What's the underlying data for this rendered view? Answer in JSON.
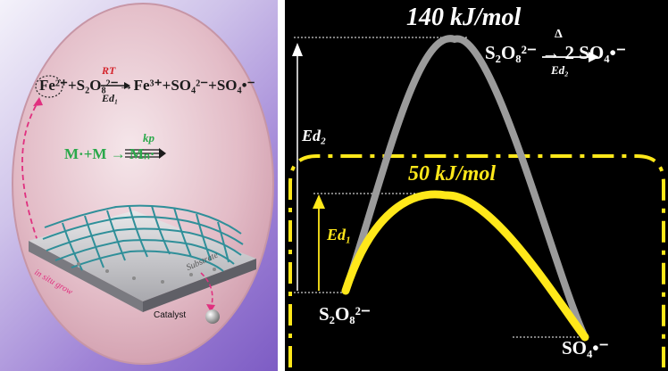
{
  "left_panel": {
    "eq1": {
      "text": "Fe²⁺+S₂O₈²⁻→Fe³⁺+SO₄²⁻+SO₄•⁻",
      "top_label": "RT",
      "bottom_label": "Ed₁"
    },
    "eq2": {
      "text": "M·+M → Mₙ·",
      "label": "kp"
    },
    "in_situ_grow": "in situ grow",
    "substrate": "Substrate",
    "catalyst": "Catalyst"
  },
  "right_panel": {
    "title_high": "140 kJ/mol",
    "title_low": "50 kJ/mol",
    "equation": "S₂O₈²⁻ → 2 SO₄•⁻",
    "arrow_top": "Δ",
    "arrow_bottom": "Ed₂",
    "ed2_label": "Ed₂",
    "ed1_label": "Ed₁",
    "reactant": "S₂O₈²⁻",
    "product": "SO₄•⁻"
  },
  "colors": {
    "yellow": "#ffe81a",
    "gray_curve": "#9b9b9b",
    "green": "#2aa84a",
    "pink": "#e0307f"
  }
}
